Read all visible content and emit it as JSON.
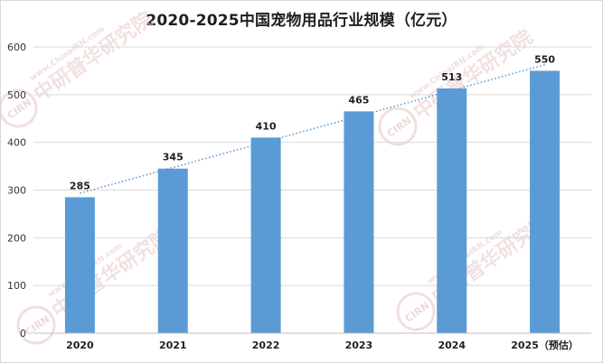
{
  "chart_data": {
    "type": "bar",
    "title": "2020-2025中国宠物用品行业规模（亿元）",
    "categories": [
      "2020",
      "2021",
      "2022",
      "2023",
      "2024",
      "2025（预估）"
    ],
    "values": [
      285,
      345,
      410,
      465,
      513,
      550
    ],
    "ylim": [
      0,
      600
    ],
    "yticks": [
      0,
      100,
      200,
      300,
      400,
      500,
      600
    ],
    "grid": true,
    "trendline": "linear dotted",
    "colors": {
      "bar": "#5b9bd5",
      "trendline": "#5b9bd5",
      "grid": "#d9d9d9"
    }
  },
  "watermark": {
    "brand": "中研普华研究院",
    "url": "www.ChinaIRN.com",
    "logo": "CIRN"
  }
}
